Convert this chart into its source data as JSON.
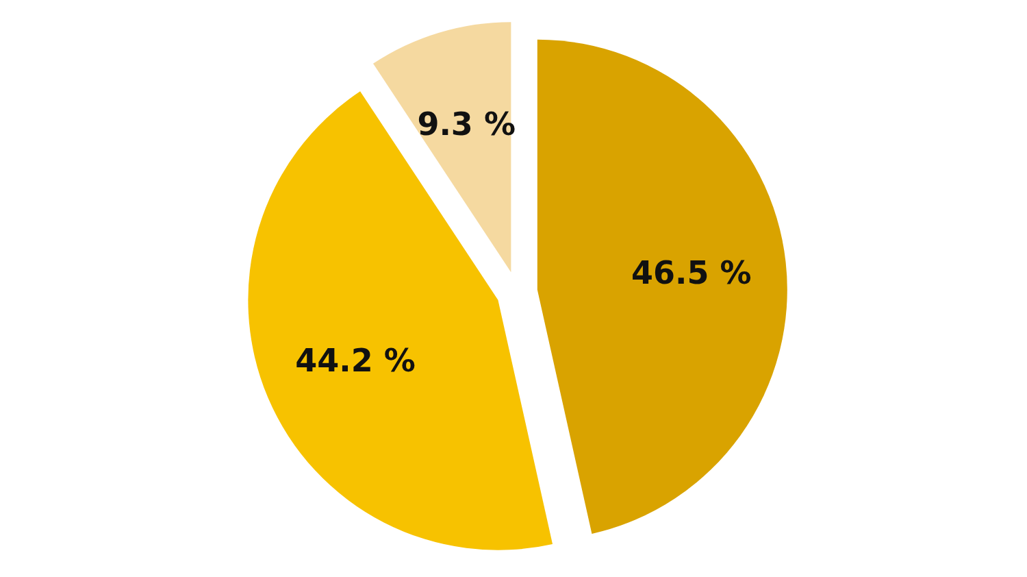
{
  "chart_data": {
    "type": "pie",
    "categories": [
      null,
      null,
      null
    ],
    "values": [
      46.5,
      44.2,
      9.3
    ],
    "colors": [
      "#d9a300",
      "#f7c200",
      "#f5d9a0"
    ],
    "value_labels": [
      "46.5 %",
      "44.2 %",
      "9.3 %"
    ],
    "legend": false
  }
}
